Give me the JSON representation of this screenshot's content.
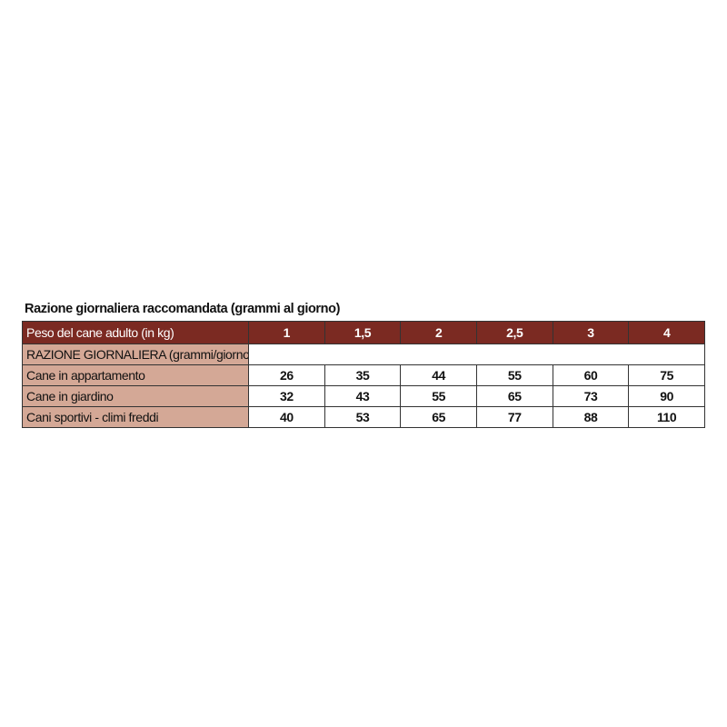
{
  "title": "Razione giornaliera raccomandata (grammi al giorno)",
  "table": {
    "header": [
      "Peso del cane adulto (in kg)",
      "1",
      "1,5",
      "2",
      "2,5",
      "3",
      "4"
    ],
    "subheader": "RAZIONE GIORNALIERA (grammi/giorno)",
    "rows": [
      [
        "Cane in appartamento",
        26,
        35,
        44,
        55,
        60,
        75
      ],
      [
        "Cane in giardino",
        32,
        43,
        55,
        65,
        73,
        90
      ],
      [
        "Cani sportivi - climi freddi",
        40,
        53,
        65,
        77,
        88,
        110
      ]
    ]
  }
}
